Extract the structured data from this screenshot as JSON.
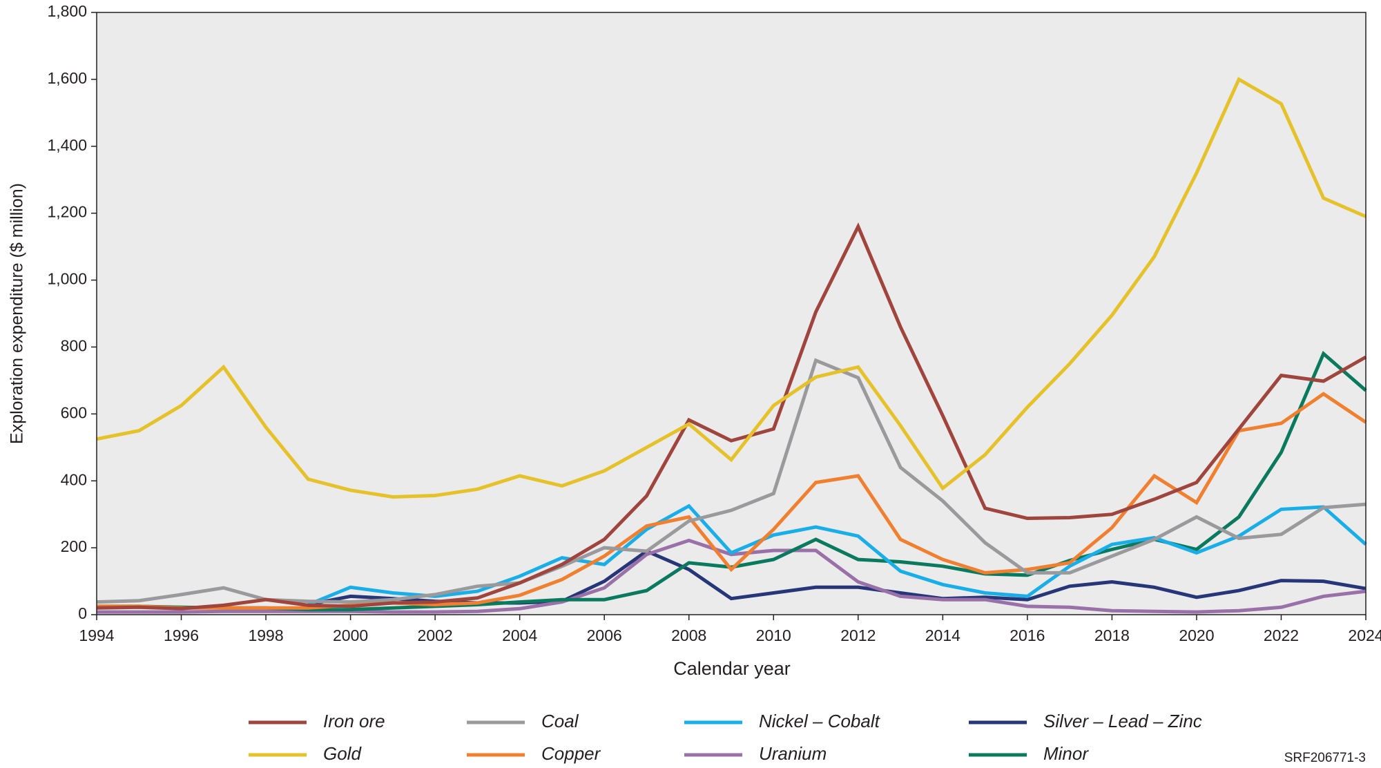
{
  "chart_data": {
    "type": "line",
    "x_label": "Calendar year",
    "y_label": "Exploration expenditure ($ million)",
    "note": "SRF206771-3",
    "x": [
      1994,
      1995,
      1996,
      1997,
      1998,
      1999,
      2000,
      2001,
      2002,
      2003,
      2004,
      2005,
      2006,
      2007,
      2008,
      2009,
      2010,
      2011,
      2012,
      2013,
      2014,
      2015,
      2016,
      2017,
      2018,
      2019,
      2020,
      2021,
      2022,
      2023,
      2024
    ],
    "xlim": [
      1994,
      2024
    ],
    "xticks": [
      1994,
      1996,
      1998,
      2000,
      2002,
      2004,
      2006,
      2008,
      2010,
      2012,
      2014,
      2016,
      2018,
      2020,
      2022,
      2024
    ],
    "ylim": [
      0,
      1800
    ],
    "yticks": [
      0,
      200,
      400,
      600,
      800,
      {
        "value": 1000,
        "label": "1,000"
      },
      {
        "value": 1200,
        "label": "1,200"
      },
      {
        "value": 1400,
        "label": "1,400"
      },
      {
        "value": 1600,
        "label": "1,600"
      },
      {
        "value": 1800,
        "label": "1,800"
      }
    ],
    "background": "#ebebeb",
    "series": [
      {
        "name": "Iron ore",
        "color": "#a0453e",
        "values": [
          20,
          22,
          18,
          28,
          45,
          28,
          25,
          35,
          38,
          50,
          95,
          150,
          225,
          355,
          582,
          520,
          555,
          905,
          1160,
          860,
          595,
          318,
          288,
          290,
          300,
          345,
          395,
          555,
          715,
          698,
          770
        ]
      },
      {
        "name": "Gold",
        "color": "#e5c12a",
        "values": [
          525,
          550,
          625,
          740,
          560,
          405,
          372,
          352,
          356,
          375,
          415,
          385,
          430,
          500,
          570,
          463,
          625,
          710,
          740,
          565,
          378,
          478,
          620,
          750,
          895,
          1070,
          1320,
          1600,
          1527,
          1245,
          1190
        ]
      },
      {
        "name": "Coal",
        "color": "#9a9a9c",
        "values": [
          38,
          42,
          60,
          80,
          45,
          40,
          38,
          45,
          60,
          85,
          95,
          145,
          200,
          190,
          280,
          312,
          362,
          760,
          708,
          440,
          340,
          215,
          125,
          125,
          175,
          225,
          292,
          228,
          240,
          320,
          330
        ]
      },
      {
        "name": "Copper",
        "color": "#f08030",
        "values": [
          25,
          25,
          20,
          20,
          20,
          20,
          28,
          35,
          30,
          35,
          58,
          105,
          175,
          265,
          292,
          135,
          255,
          395,
          415,
          225,
          165,
          125,
          135,
          155,
          260,
          415,
          335,
          550,
          572,
          660,
          575
        ]
      },
      {
        "name": "Nickel – Cobalt",
        "color": "#1aaee8",
        "values": [
          null,
          null,
          null,
          null,
          null,
          30,
          82,
          65,
          55,
          70,
          115,
          170,
          150,
          255,
          325,
          185,
          238,
          262,
          235,
          130,
          90,
          65,
          55,
          145,
          210,
          230,
          185,
          235,
          315,
          322,
          210
        ]
      },
      {
        "name": "Uranium",
        "color": "#9a70a8",
        "values": [
          8,
          8,
          8,
          10,
          10,
          10,
          10,
          8,
          8,
          10,
          18,
          38,
          80,
          180,
          222,
          180,
          192,
          192,
          98,
          55,
          45,
          45,
          25,
          22,
          12,
          10,
          8,
          12,
          22,
          55,
          70
        ]
      },
      {
        "name": "Silver – Lead – Zinc",
        "color": "#263678",
        "values": [
          null,
          null,
          null,
          null,
          null,
          30,
          55,
          48,
          40,
          35,
          35,
          40,
          100,
          190,
          135,
          48,
          65,
          82,
          82,
          65,
          48,
          52,
          45,
          85,
          98,
          82,
          52,
          72,
          102,
          100,
          78
        ]
      },
      {
        "name": "Minor",
        "color": "#0a7a5e",
        "values": [
          25,
          25,
          22,
          20,
          20,
          15,
          15,
          20,
          25,
          30,
          38,
          45,
          45,
          72,
          155,
          142,
          165,
          225,
          165,
          158,
          145,
          122,
          118,
          162,
          195,
          225,
          195,
          292,
          485,
          780,
          670
        ]
      }
    ]
  }
}
